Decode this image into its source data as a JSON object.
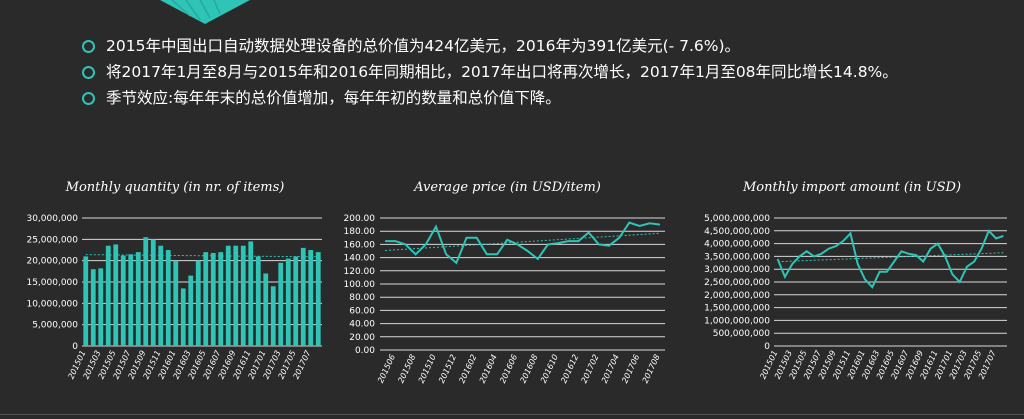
{
  "colors": {
    "accent": "#2ec4b6",
    "background": "#2a2a2a",
    "grid": "#d9d9d9",
    "text": "#ffffff"
  },
  "icons": {
    "bullet": "circle-outline-icon"
  },
  "bullets": [
    "2015年中国出口自动数据处理设备的总价值为424亿美元，2016年为391亿美元(- 7.6%)。",
    "将2017年1月至8月与2015年和2016年同期相比，2017年出口将再次增长，2017年1月至08年同比增长14.8%。",
    "季节效应:每年年末的总价值增加，每年年初的数量和总价值下降。"
  ],
  "chart_data": [
    {
      "type": "bar",
      "title": "Monthly quantity (in nr. of items)",
      "trendline": true,
      "ylim": [
        0,
        30000000
      ],
      "yticks": [
        "0",
        "5,000,000",
        "10,000,000",
        "15,000,000",
        "20,000,000",
        "25,000,000",
        "30,000,000"
      ],
      "xticks": [
        "201501",
        "201503",
        "201505",
        "201507",
        "201509",
        "201511",
        "201601",
        "201603",
        "201605",
        "201607",
        "201609",
        "201611",
        "201701",
        "201703",
        "201705",
        "201707"
      ],
      "categories": [
        "201501",
        "201502",
        "201503",
        "201504",
        "201505",
        "201506",
        "201507",
        "201508",
        "201509",
        "201510",
        "201511",
        "201512",
        "201601",
        "201602",
        "201603",
        "201604",
        "201605",
        "201606",
        "201607",
        "201608",
        "201609",
        "201610",
        "201611",
        "201612",
        "201701",
        "201702",
        "201703",
        "201704",
        "201705",
        "201706",
        "201707",
        "201708"
      ],
      "values": [
        21000000,
        18000000,
        18200000,
        23500000,
        23800000,
        21200000,
        21500000,
        22000000,
        25500000,
        25000000,
        23500000,
        22500000,
        20000000,
        13500000,
        16500000,
        20000000,
        22000000,
        21800000,
        22000000,
        23500000,
        23500000,
        23500000,
        24500000,
        21000000,
        17000000,
        14000000,
        19500000,
        20500000,
        21000000,
        23000000,
        22500000,
        22000000
      ]
    },
    {
      "type": "line",
      "title": "Average price (in USD/item)",
      "trendline": true,
      "ylim": [
        0,
        200
      ],
      "yticks": [
        "0.00",
        "20.00",
        "40.00",
        "60.00",
        "80.00",
        "100.00",
        "120.00",
        "140.00",
        "160.00",
        "180.00",
        "200.00"
      ],
      "xticks": [
        "201506",
        "201508",
        "201510",
        "201512",
        "201602",
        "201604",
        "201606",
        "201608",
        "201610",
        "201612",
        "201702",
        "201704",
        "201706",
        "201708"
      ],
      "x": [
        "201505",
        "201506",
        "201507",
        "201508",
        "201509",
        "201510",
        "201511",
        "201512",
        "201601",
        "201602",
        "201603",
        "201604",
        "201605",
        "201606",
        "201607",
        "201608",
        "201609",
        "201610",
        "201611",
        "201612",
        "201701",
        "201702",
        "201703",
        "201704",
        "201705",
        "201706",
        "201707",
        "201708"
      ],
      "values": [
        165,
        165,
        160,
        145,
        160,
        187,
        145,
        132,
        170,
        170,
        145,
        145,
        167,
        160,
        150,
        138,
        160,
        162,
        165,
        165,
        178,
        160,
        158,
        170,
        193,
        188,
        192,
        190
      ]
    },
    {
      "type": "line",
      "title": "Monthly import amount (in USD)",
      "trendline": true,
      "ylim": [
        0,
        5000000000
      ],
      "yticks": [
        "0",
        "500,000,000",
        "1,000,000,000",
        "1,500,000,000",
        "2,000,000,000",
        "2,500,000,000",
        "3,000,000,000",
        "3,500,000,000",
        "4,000,000,000",
        "4,500,000,000",
        "5,000,000,000"
      ],
      "xticks": [
        "201501",
        "201503",
        "201505",
        "201507",
        "201509",
        "201511",
        "201601",
        "201603",
        "201605",
        "201607",
        "201609",
        "201611",
        "201701",
        "201703",
        "201705",
        "201707"
      ],
      "x": [
        "201501",
        "201502",
        "201503",
        "201504",
        "201505",
        "201506",
        "201507",
        "201508",
        "201509",
        "201510",
        "201511",
        "201512",
        "201601",
        "201602",
        "201603",
        "201604",
        "201605",
        "201606",
        "201607",
        "201608",
        "201609",
        "201610",
        "201611",
        "201612",
        "201701",
        "201702",
        "201703",
        "201704",
        "201705",
        "201706",
        "201707",
        "201708"
      ],
      "values": [
        3400000000,
        2700000000,
        3200000000,
        3500000000,
        3700000000,
        3500000000,
        3600000000,
        3800000000,
        3900000000,
        4100000000,
        4400000000,
        3200000000,
        2600000000,
        2300000000,
        2900000000,
        2900000000,
        3300000000,
        3700000000,
        3600000000,
        3550000000,
        3300000000,
        3800000000,
        4000000000,
        3500000000,
        2800000000,
        2500000000,
        3100000000,
        3300000000,
        3800000000,
        4500000000,
        4200000000,
        4300000000
      ]
    }
  ]
}
